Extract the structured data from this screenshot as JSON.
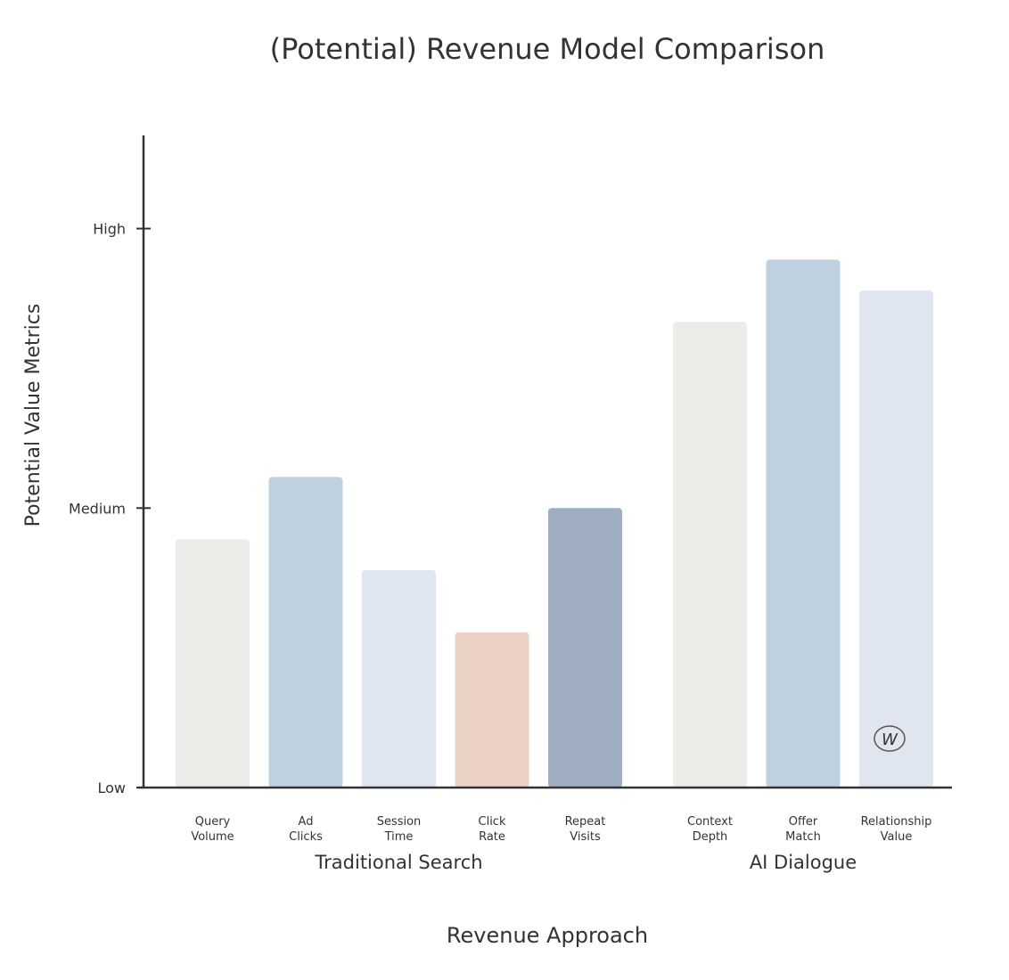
{
  "chart_data": {
    "type": "bar",
    "title": "(Potential) Revenue Model Comparison",
    "xlabel": "Revenue Approach",
    "ylabel": "Potential Value Metrics",
    "ylim": [
      0,
      10.5
    ],
    "yticks": [
      {
        "value": 0,
        "label": "Low"
      },
      {
        "value": 4.5,
        "label": "Medium"
      },
      {
        "value": 9,
        "label": "High"
      }
    ],
    "grid": false,
    "groups": [
      {
        "name": "Traditional Search",
        "bars": [
          {
            "label": [
              "Query",
              "Volume"
            ],
            "value": 4.0,
            "color": "#ECECE8"
          },
          {
            "label": [
              "Ad",
              "Clicks"
            ],
            "value": 5.0,
            "color": "#BFD0DF"
          },
          {
            "label": [
              "Session",
              "Time"
            ],
            "value": 3.5,
            "color": "#DFE6EF"
          },
          {
            "label": [
              "Click",
              "Rate"
            ],
            "value": 2.5,
            "color": "#EBD2C4"
          },
          {
            "label": [
              "Repeat",
              "Visits"
            ],
            "value": 4.5,
            "color": "#9FAEC1"
          }
        ]
      },
      {
        "name": "AI Dialogue",
        "bars": [
          {
            "label": [
              "Context",
              "Depth"
            ],
            "value": 7.5,
            "color": "#ECECE8"
          },
          {
            "label": [
              "Offer",
              "Match"
            ],
            "value": 8.5,
            "color": "#BFD0DF"
          },
          {
            "label": [
              "Relationship",
              "Value"
            ],
            "value": 8.0,
            "color": "#DFE6EF"
          }
        ]
      }
    ],
    "watermark": "W"
  }
}
